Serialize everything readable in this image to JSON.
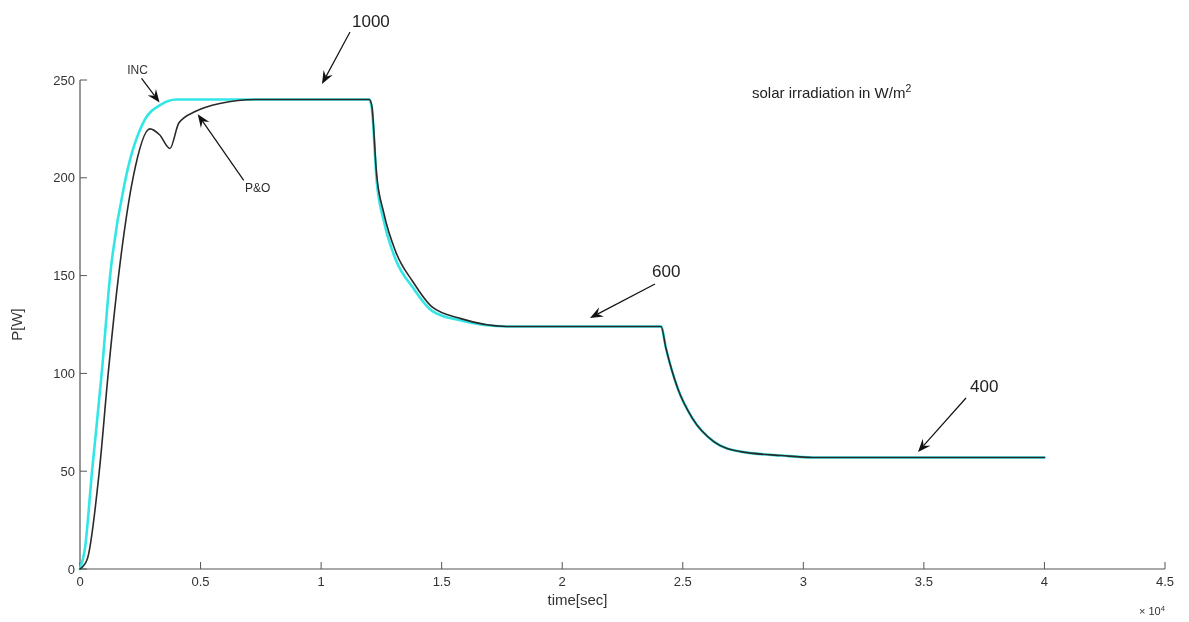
{
  "chart_data": {
    "type": "line",
    "xlabel": "time[sec]",
    "ylabel": "P[W]",
    "legend": false,
    "grid": false,
    "marker": "none",
    "line_style": "solid",
    "xlim": [
      0,
      4.5
    ],
    "ylim": [
      0,
      250
    ],
    "xticks": [
      0,
      0.5,
      1,
      1.5,
      2,
      2.5,
      3,
      3.5,
      4,
      4.5
    ],
    "yticks": [
      0,
      50,
      100,
      150,
      200,
      250
    ],
    "series": [
      {
        "name": "INC",
        "color": "#33e6e6",
        "x": [
          0,
          0.02,
          0.05,
          0.09,
          0.125,
          0.19,
          0.27,
          0.33,
          0.4,
          1.2,
          1.21,
          1.23,
          1.26,
          1.31,
          1.38,
          1.46,
          1.58,
          1.77,
          2.41,
          2.43,
          2.48,
          2.54,
          2.63,
          2.74,
          2.91,
          3.04,
          4
        ],
        "values": [
          0,
          10,
          50,
          100,
          150,
          200,
          230,
          237,
          240,
          240,
          236,
          199,
          178,
          158,
          144,
          132,
          127,
          124,
          124,
          113,
          92,
          77,
          65,
          60,
          58,
          57,
          57
        ]
      },
      {
        "name": "P&O",
        "color": "#2a2a2a",
        "x": [
          0,
          0.03,
          0.08,
          0.117,
          0.16,
          0.22,
          0.29,
          0.33,
          0.373,
          0.41,
          0.48,
          0.58,
          0.73,
          1.2,
          1.21,
          1.23,
          1.26,
          1.31,
          1.38,
          1.46,
          1.58,
          1.77,
          2.41,
          2.43,
          2.48,
          2.54,
          2.63,
          2.74,
          2.91,
          3.04,
          4
        ],
        "values": [
          0,
          5,
          50,
          100,
          150,
          200,
          225,
          222,
          215,
          228,
          234,
          238,
          240,
          240,
          237,
          202,
          182,
          162,
          147,
          134,
          128,
          124,
          124,
          113,
          92,
          77,
          65,
          60,
          58,
          57,
          57
        ]
      }
    ],
    "annotations": [
      "1000",
      "600",
      "400",
      "solar irradiation in W/m$^{2}$",
      "× 10$^{4}$"
    ]
  }
}
